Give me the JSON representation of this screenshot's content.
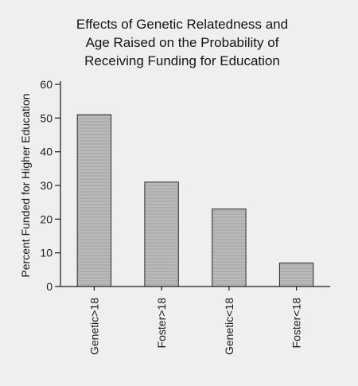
{
  "chart_data": {
    "type": "bar",
    "title": [
      "Effects of Genetic Relatedness and",
      "Age Raised on the Probability of",
      "Receiving Funding for Education"
    ],
    "categories": [
      "Genetic>18",
      "Foster>18",
      "Genetic<18",
      "Foster<18"
    ],
    "values": [
      51,
      31,
      23,
      7
    ],
    "xlabel": "",
    "ylabel": "Percent Funded for Higher Education",
    "ylim": [
      0,
      60
    ],
    "yticks": [
      0,
      10,
      20,
      30,
      40,
      50,
      60
    ],
    "grid": false,
    "legend": "none",
    "bar_color": "#b4b4b4"
  }
}
